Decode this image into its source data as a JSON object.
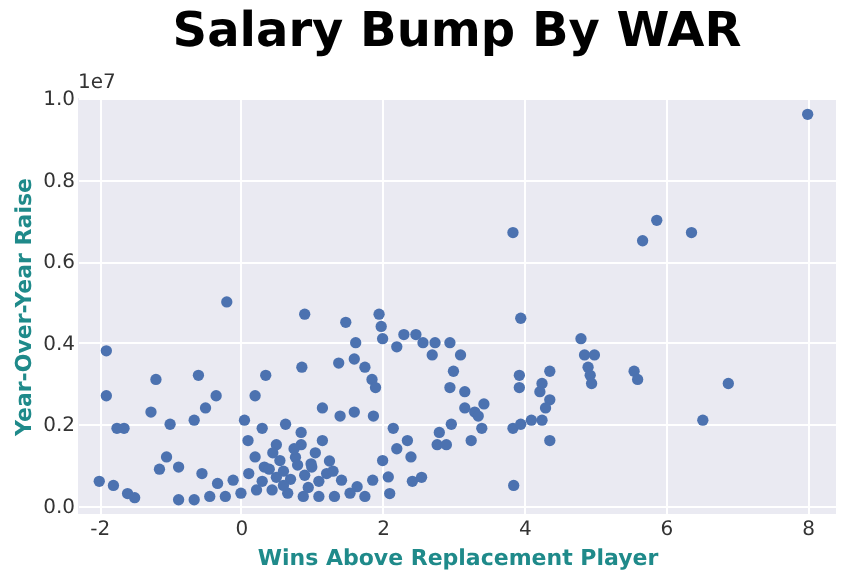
{
  "chart_data": {
    "type": "scatter",
    "title": "Salary Bump By WAR",
    "xlabel": "Wins Above Replacement Player",
    "ylabel": "Year-Over-Year Raise",
    "annotations": [
      "1e7"
    ],
    "xlim": [
      -2.3,
      8.4
    ],
    "xticks": [
      -2,
      0,
      2,
      4,
      6,
      8
    ],
    "ylim": [
      -0.02,
      1.0
    ],
    "yticks": [
      {
        "value": 0,
        "label": "0.0"
      },
      0.2,
      0.4,
      0.6,
      0.8,
      {
        "value": 1,
        "label": "1.0"
      }
    ],
    "grid": true,
    "marker": "circle",
    "series": [
      {
        "color": "#4c72b0",
        "x": [
          8.0,
          5.87,
          5.67,
          6.36,
          3.84,
          3.95,
          4.8,
          4.85,
          4.99,
          4.9,
          4.93,
          4.95,
          5.55,
          5.6,
          6.88,
          6.52,
          4.36,
          4.25,
          4.22,
          4.36,
          4.3,
          4.25,
          4.36,
          3.93,
          3.93,
          3.84,
          3.95,
          4.1,
          3.85,
          3.3,
          3.25,
          2.8,
          2.77,
          2.42,
          2.3,
          2.57,
          2.95,
          3.1,
          3.0,
          2.95,
          -0.2,
          -1.9,
          -1.9,
          -1.75,
          -1.65,
          -2.0,
          -1.8,
          -1.6,
          -1.5,
          -1.2,
          -1.27,
          -0.6,
          -1.0,
          -1.15,
          -1.05,
          -0.66,
          -0.5,
          -0.35,
          0.35,
          0.9,
          0.86,
          0.2,
          1.48,
          1.95,
          1.98,
          2.0,
          1.62,
          2.47,
          2.74,
          2.7,
          2.2,
          1.38,
          1.6,
          1.75,
          1.85,
          1.9,
          3.16,
          3.43,
          3.16,
          3.35,
          3.4,
          2.97,
          2.9,
          2.55,
          2.1,
          1.15,
          1.4,
          1.6,
          1.87,
          2.15,
          2.35,
          2.2,
          2.4,
          0.05,
          0.3,
          0.63,
          0.85,
          0.1,
          0.5,
          0.85,
          1.15,
          -0.88,
          -0.55,
          -0.33,
          -0.11,
          0.11,
          0.33,
          0.55,
          0.77,
          0.99,
          1.21,
          1.42,
          1.64,
          1.86,
          2.08,
          2.0,
          -0.88,
          -0.66,
          -0.44,
          -0.22,
          0.0,
          0.22,
          0.44,
          0.66,
          0.88,
          1.1,
          1.32,
          1.54,
          1.75,
          0.3,
          0.5,
          0.7,
          0.9,
          1.1,
          0.4,
          0.6,
          0.8,
          1.0,
          1.3,
          0.2,
          0.45,
          0.75,
          1.05,
          1.25,
          0.6,
          0.95
        ],
        "values": [
          0.96,
          0.7,
          0.65,
          0.67,
          0.67,
          0.46,
          0.41,
          0.37,
          0.37,
          0.34,
          0.32,
          0.3,
          0.33,
          0.31,
          0.3,
          0.21,
          0.33,
          0.3,
          0.28,
          0.26,
          0.24,
          0.21,
          0.16,
          0.32,
          0.29,
          0.19,
          0.2,
          0.21,
          0.05,
          0.23,
          0.16,
          0.18,
          0.15,
          0.06,
          0.42,
          0.4,
          0.4,
          0.37,
          0.33,
          0.29,
          0.5,
          0.38,
          0.27,
          0.19,
          0.19,
          0.06,
          0.05,
          0.03,
          0.02,
          0.31,
          0.23,
          0.32,
          0.2,
          0.09,
          0.12,
          0.21,
          0.24,
          0.27,
          0.32,
          0.47,
          0.34,
          0.27,
          0.45,
          0.47,
          0.44,
          0.41,
          0.4,
          0.42,
          0.4,
          0.37,
          0.39,
          0.35,
          0.36,
          0.34,
          0.31,
          0.29,
          0.28,
          0.25,
          0.24,
          0.22,
          0.19,
          0.2,
          0.15,
          0.07,
          0.03,
          0.24,
          0.22,
          0.23,
          0.22,
          0.19,
          0.16,
          0.14,
          0.12,
          0.21,
          0.19,
          0.2,
          0.18,
          0.16,
          0.15,
          0.15,
          0.16,
          0.095,
          0.079,
          0.055,
          0.063,
          0.079,
          0.095,
          0.111,
          0.119,
          0.103,
          0.079,
          0.063,
          0.047,
          0.063,
          0.071,
          0.111,
          0.015,
          0.015,
          0.023,
          0.023,
          0.031,
          0.039,
          0.039,
          0.031,
          0.023,
          0.023,
          0.023,
          0.031,
          0.023,
          0.06,
          0.07,
          0.065,
          0.075,
          0.06,
          0.09,
          0.085,
          0.1,
          0.095,
          0.085,
          0.12,
          0.13,
          0.14,
          0.13,
          0.11,
          0.05,
          0.045
        ]
      }
    ]
  }
}
